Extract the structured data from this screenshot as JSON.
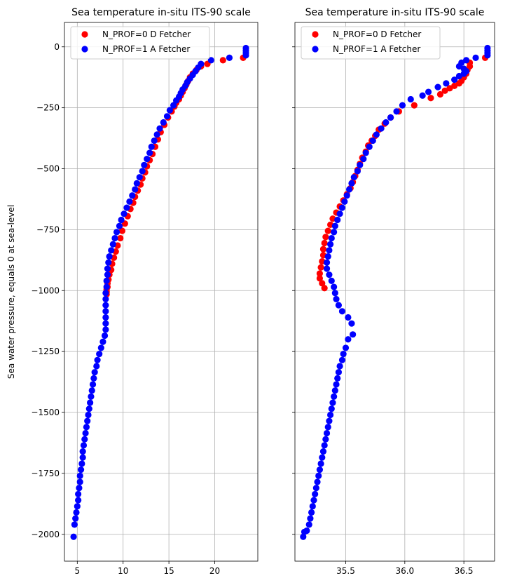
{
  "chart_data": [
    {
      "type": "scatter",
      "title": "Sea temperature in-situ ITS-90 scale",
      "xlabel": "",
      "ylabel": "Sea water pressure, equals 0 at sea-level",
      "xlim": [
        3.6,
        24.7
      ],
      "ylim": [
        -2110,
        100
      ],
      "xticks": [
        5,
        10,
        15,
        20
      ],
      "yticks": [
        0,
        -250,
        -500,
        -750,
        -1000,
        -1250,
        -1500,
        -1750,
        -2000
      ],
      "grid": true,
      "legend_position": "top-left",
      "series": [
        {
          "name": "N_PROF=0 D Fetcher",
          "color": "#ff0000",
          "x": [
            23.1,
            20.9,
            19.2,
            18.5,
            18.0,
            17.6,
            17.3,
            17.1,
            16.9,
            16.7,
            16.5,
            16.3,
            16.1,
            15.8,
            15.6,
            15.3,
            14.9,
            14.5,
            14.1,
            13.8,
            13.5,
            13.2,
            12.9,
            12.6,
            12.4,
            12.1,
            11.9,
            11.6,
            11.3,
            11.1,
            10.8,
            10.5,
            10.2,
            9.9,
            9.7,
            9.4,
            9.2,
            9.0,
            8.8,
            8.7,
            8.5,
            8.4,
            8.3,
            8.3,
            8.2,
            8.2,
            8.2
          ],
          "y": [
            -45,
            -55,
            -70,
            -80,
            -95,
            -110,
            -125,
            -140,
            -155,
            -170,
            -185,
            -200,
            -215,
            -230,
            -245,
            -265,
            -290,
            -320,
            -350,
            -380,
            -410,
            -440,
            -465,
            -490,
            -515,
            -540,
            -565,
            -590,
            -615,
            -640,
            -665,
            -695,
            -725,
            -755,
            -785,
            -815,
            -840,
            -865,
            -890,
            -915,
            -935,
            -955,
            -970,
            -985,
            -995,
            -1005,
            -1015
          ]
        },
        {
          "name": "N_PROF=1 A Fetcher",
          "color": "#0000ff",
          "x": [
            23.4,
            23.4,
            23.4,
            23.4,
            21.6,
            19.6,
            18.5,
            18.2,
            17.9,
            17.6,
            17.3,
            17.0,
            16.8,
            16.5,
            16.3,
            16.1,
            15.8,
            15.5,
            15.1,
            14.8,
            14.4,
            14.0,
            13.7,
            13.4,
            13.1,
            12.9,
            12.6,
            12.3,
            12.1,
            11.8,
            11.5,
            11.3,
            11.0,
            10.7,
            10.4,
            10.1,
            9.8,
            9.6,
            9.3,
            9.1,
            8.9,
            8.7,
            8.5,
            8.4,
            8.3,
            8.3,
            8.2,
            8.2,
            8.1,
            8.1,
            8.1,
            8.1,
            8.1,
            8.1,
            8.1,
            8.0,
            7.8,
            7.6,
            7.4,
            7.2,
            7.1,
            6.9,
            6.8,
            6.7,
            6.6,
            6.5,
            6.4,
            6.3,
            6.2,
            6.1,
            6.0,
            5.9,
            5.8,
            5.7,
            5.6,
            5.6,
            5.5,
            5.4,
            5.3,
            5.3,
            5.2,
            5.1,
            5.1,
            5.0,
            4.9,
            4.8,
            4.7,
            4.6
          ],
          "y": [
            -5,
            -15,
            -25,
            -35,
            -45,
            -55,
            -70,
            -85,
            -100,
            -115,
            -130,
            -145,
            -160,
            -175,
            -190,
            -205,
            -220,
            -240,
            -260,
            -285,
            -310,
            -335,
            -360,
            -385,
            -410,
            -435,
            -460,
            -485,
            -510,
            -535,
            -560,
            -585,
            -610,
            -635,
            -660,
            -685,
            -710,
            -735,
            -760,
            -785,
            -810,
            -835,
            -860,
            -885,
            -910,
            -935,
            -960,
            -985,
            -1010,
            -1035,
            -1060,
            -1085,
            -1110,
            -1135,
            -1160,
            -1185,
            -1210,
            -1235,
            -1260,
            -1285,
            -1310,
            -1335,
            -1360,
            -1385,
            -1410,
            -1435,
            -1460,
            -1485,
            -1510,
            -1535,
            -1560,
            -1585,
            -1610,
            -1635,
            -1660,
            -1685,
            -1710,
            -1735,
            -1760,
            -1785,
            -1810,
            -1835,
            -1860,
            -1885,
            -1910,
            -1935,
            -1960,
            -2010
          ]
        }
      ]
    },
    {
      "type": "scatter",
      "title": "Sea temperature in-situ ITS-90 scale",
      "xlabel": "",
      "ylabel": "",
      "xlim": [
        35.07,
        36.76
      ],
      "ylim": [
        -2110,
        100
      ],
      "xticks": [
        35.5,
        36.0,
        36.5
      ],
      "xtick_labels": [
        "35.5",
        "36.0",
        "36.5"
      ],
      "yticks": [
        0,
        -250,
        -500,
        -750,
        -1000,
        -1250,
        -1500,
        -1750,
        -2000
      ],
      "grid": true,
      "legend_position": "top-left",
      "series": [
        {
          "name": "N_PROF=0 D Fetcher",
          "color": "#ff0000",
          "x": [
            36.68,
            36.55,
            36.55,
            36.53,
            36.52,
            36.5,
            36.48,
            36.46,
            36.42,
            36.38,
            36.34,
            36.3,
            36.22,
            36.08,
            35.95,
            35.88,
            35.83,
            35.78,
            35.75,
            35.72,
            35.69,
            35.67,
            35.64,
            35.62,
            35.6,
            35.58,
            35.56,
            35.54,
            35.51,
            35.48,
            35.45,
            35.42,
            35.39,
            35.37,
            35.35,
            35.33,
            35.32,
            35.31,
            35.31,
            35.3,
            35.29,
            35.28,
            35.28,
            35.3,
            35.32
          ],
          "y": [
            -45,
            -65,
            -80,
            -95,
            -110,
            -125,
            -140,
            -150,
            -160,
            -170,
            -180,
            -195,
            -210,
            -240,
            -265,
            -290,
            -315,
            -340,
            -365,
            -385,
            -405,
            -430,
            -455,
            -480,
            -505,
            -530,
            -555,
            -580,
            -605,
            -630,
            -655,
            -680,
            -705,
            -730,
            -755,
            -780,
            -805,
            -830,
            -855,
            -880,
            -905,
            -930,
            -950,
            -970,
            -990
          ]
        },
        {
          "name": "N_PROF=1 A Fetcher",
          "color": "#0000ff",
          "x": [
            36.7,
            36.7,
            36.7,
            36.7,
            36.6,
            36.52,
            36.48,
            36.46,
            36.5,
            36.52,
            36.5,
            36.46,
            36.42,
            36.35,
            36.28,
            36.2,
            36.15,
            36.05,
            35.98,
            35.93,
            35.88,
            35.84,
            35.8,
            35.76,
            35.73,
            35.7,
            35.67,
            35.65,
            35.62,
            35.6,
            35.57,
            35.55,
            35.53,
            35.51,
            35.49,
            35.47,
            35.45,
            35.43,
            35.41,
            35.4,
            35.38,
            35.37,
            35.36,
            35.35,
            35.34,
            35.34,
            35.36,
            35.38,
            35.4,
            35.41,
            35.42,
            35.44,
            35.47,
            35.52,
            35.55,
            35.56,
            35.52,
            35.5,
            35.48,
            35.47,
            35.45,
            35.44,
            35.43,
            35.42,
            35.41,
            35.4,
            35.39,
            35.38,
            35.37,
            35.36,
            35.35,
            35.34,
            35.33,
            35.32,
            35.31,
            35.3,
            35.29,
            35.28,
            35.27,
            35.26,
            35.25,
            35.24,
            35.23,
            35.22,
            35.21,
            35.2,
            35.19,
            35.17,
            35.15,
            35.14
          ],
          "y": [
            -5,
            -15,
            -25,
            -35,
            -45,
            -55,
            -65,
            -80,
            -90,
            -100,
            -110,
            -120,
            -135,
            -150,
            -165,
            -185,
            -200,
            -215,
            -240,
            -265,
            -290,
            -310,
            -335,
            -360,
            -385,
            -410,
            -435,
            -460,
            -485,
            -510,
            -535,
            -560,
            -585,
            -610,
            -635,
            -660,
            -685,
            -710,
            -735,
            -760,
            -785,
            -810,
            -835,
            -860,
            -885,
            -910,
            -935,
            -960,
            -985,
            -1010,
            -1035,
            -1060,
            -1085,
            -1110,
            -1135,
            -1180,
            -1200,
            -1235,
            -1260,
            -1285,
            -1310,
            -1335,
            -1360,
            -1385,
            -1410,
            -1435,
            -1460,
            -1485,
            -1510,
            -1535,
            -1560,
            -1585,
            -1610,
            -1635,
            -1660,
            -1685,
            -1710,
            -1735,
            -1760,
            -1785,
            -1810,
            -1835,
            -1860,
            -1885,
            -1910,
            -1935,
            -1960,
            -1985,
            -1990,
            -2010
          ]
        }
      ]
    }
  ]
}
